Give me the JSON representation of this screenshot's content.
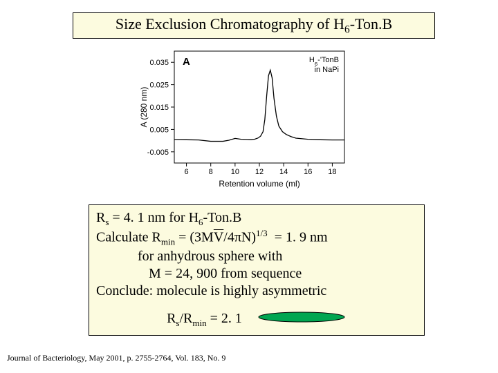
{
  "title_html": "Size Exclusion Chromatography of H<sub>6</sub>-Ton.B",
  "chart": {
    "panel_label": "A",
    "legend_l1_html": "H<sub>6</sub>-'TonB",
    "legend_l2": "in NaPi",
    "ylabel": "A (280 nm)",
    "xlabel": "Retention volume (ml)",
    "plot_bg": "#ffffff",
    "axis_color": "#000000",
    "line_color": "#000000",
    "tick_fontsize": 11,
    "label_fontsize": 12,
    "panel_fontsize": 15,
    "legend_fontsize": 11,
    "xlim": [
      5,
      19
    ],
    "ylim": [
      -0.01,
      0.04
    ],
    "xticks": [
      6,
      8,
      10,
      12,
      14,
      16,
      18
    ],
    "yticks": [
      -0.005,
      0.005,
      0.015,
      0.025,
      0.035
    ],
    "series": {
      "x": [
        5.0,
        6.0,
        7.0,
        8.0,
        9.0,
        9.5,
        10.0,
        10.5,
        11.0,
        11.3,
        11.6,
        11.9,
        12.1,
        12.3,
        12.45,
        12.6,
        12.75,
        12.9,
        13.05,
        13.2,
        13.4,
        13.6,
        13.9,
        14.2,
        14.6,
        15.0,
        16.0,
        17.0,
        18.0,
        19.0
      ],
      "y": [
        0.0005,
        0.0004,
        0.0003,
        -0.0003,
        -0.0003,
        0.0002,
        0.001,
        0.0006,
        0.0005,
        0.0004,
        0.0006,
        0.0012,
        0.002,
        0.004,
        0.0095,
        0.02,
        0.029,
        0.0315,
        0.028,
        0.019,
        0.011,
        0.0065,
        0.004,
        0.0028,
        0.0018,
        0.0011,
        0.0006,
        0.0004,
        0.0003,
        0.0003
      ]
    }
  },
  "info": {
    "l1_html": "R<sub>s</sub> = 4. 1 nm for H<sub>6</sub>-Ton.B",
    "l2_html": "Calculate R<sub>min</sub> = (3M<span class=\"overbar\">V</span>/4&pi;N)<sup>1/3</sup>&nbsp;&nbsp;= 1. 9 nm",
    "l3": "for anhydrous sphere with",
    "l4": "M = 24, 900 from sequence",
    "l5": "Conclude: molecule is highly asymmetric",
    "ratio_html": "R<sub>s</sub>/R<sub>min</sub> = 2. 1",
    "ellipse_fill": "#00a651",
    "ellipse_stroke": "#000000"
  },
  "citation": "Journal of Bacteriology, May 2001, p. 2755-2764, Vol. 183, No. 9",
  "colors": {
    "box_bg": "#fcfbdf",
    "box_border": "#000000",
    "page_bg": "#ffffff",
    "text": "#000000"
  }
}
